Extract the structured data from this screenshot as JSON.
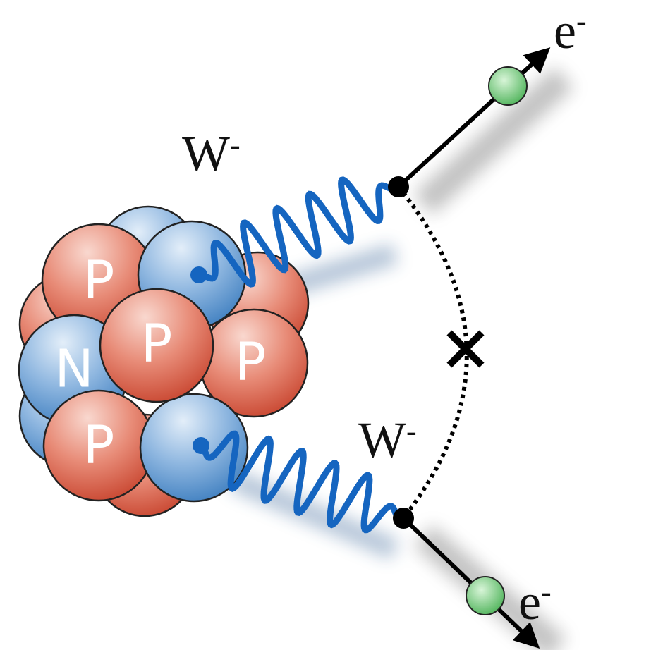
{
  "bosons": [
    {
      "label": "W",
      "charge": "-"
    },
    {
      "label": "W",
      "charge": "-"
    }
  ],
  "electrons": [
    {
      "label": "e",
      "charge": "-"
    },
    {
      "label": "e",
      "charge": "-"
    }
  ],
  "nucleons": [
    "P",
    "P",
    "N",
    "P",
    "P"
  ]
}
